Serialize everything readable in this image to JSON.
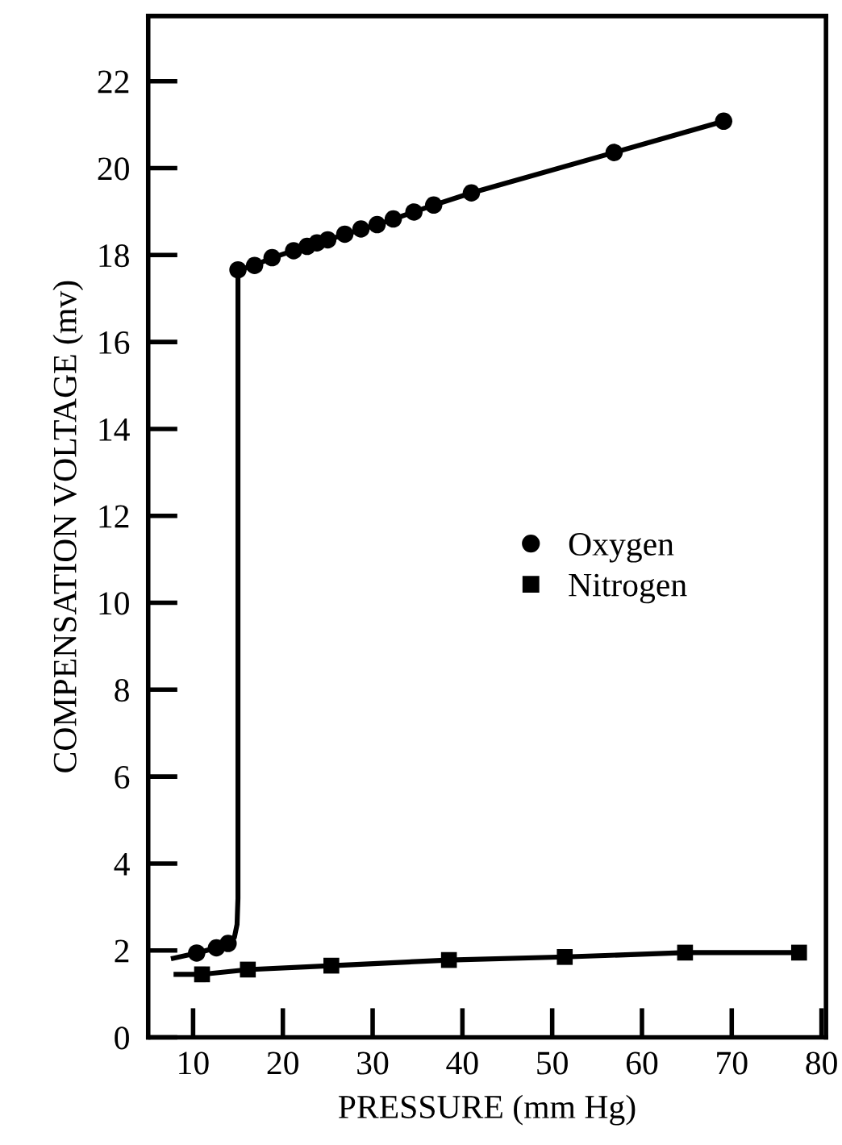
{
  "chart_data": {
    "type": "scatter",
    "xlabel": "PRESSURE (mm Hg)",
    "ylabel": "COMPENSATION VOLTAGE (mv)",
    "xlim": [
      5,
      80.5
    ],
    "ylim": [
      0,
      23.5
    ],
    "xticks": [
      10,
      20,
      30,
      40,
      50,
      60,
      70,
      80
    ],
    "yticks": [
      0,
      2,
      4,
      6,
      8,
      10,
      12,
      14,
      16,
      18,
      20,
      22
    ],
    "grid": false,
    "legend": "center right",
    "series": [
      {
        "name": "Oxygen",
        "marker": "circle",
        "color": "#000000",
        "x": [
          10.4,
          12.6,
          13.9,
          15.0,
          16.85,
          18.8,
          21.2,
          22.7,
          23.8,
          25.0,
          26.9,
          28.7,
          30.5,
          32.3,
          34.6,
          36.8,
          41.0,
          56.9,
          69.1
        ],
        "values": [
          1.94,
          2.06,
          2.16,
          17.66,
          17.76,
          17.94,
          18.1,
          18.2,
          18.28,
          18.35,
          18.48,
          18.6,
          18.7,
          18.83,
          18.99,
          19.15,
          19.43,
          20.36,
          21.08
        ]
      },
      {
        "name": "Nitrogen",
        "marker": "square",
        "color": "#000000",
        "x": [
          11.0,
          16.1,
          25.4,
          38.5,
          51.4,
          64.8,
          77.5
        ],
        "values": [
          1.45,
          1.56,
          1.65,
          1.78,
          1.85,
          1.95,
          1.95
        ]
      },
      {
        "type": "line",
        "color": "#000000",
        "x": [
          7.8,
          10.4,
          12.6,
          13.9,
          14.6,
          14.9,
          15.0,
          15.0,
          16.85,
          18.8,
          21.2,
          25.0,
          30.5,
          36.8,
          41.0,
          56.9,
          69.1
        ],
        "values": [
          1.82,
          1.94,
          2.06,
          2.16,
          2.3,
          2.6,
          3.2,
          17.66,
          17.76,
          17.94,
          18.1,
          18.35,
          18.7,
          19.15,
          19.43,
          20.36,
          21.08
        ]
      },
      {
        "type": "line",
        "color": "#000000",
        "x": [
          8.1,
          11.0,
          16.1,
          25.4,
          38.5,
          51.4,
          64.8,
          77.5
        ],
        "values": [
          1.45,
          1.45,
          1.56,
          1.65,
          1.78,
          1.85,
          1.95,
          1.95
        ]
      }
    ]
  }
}
